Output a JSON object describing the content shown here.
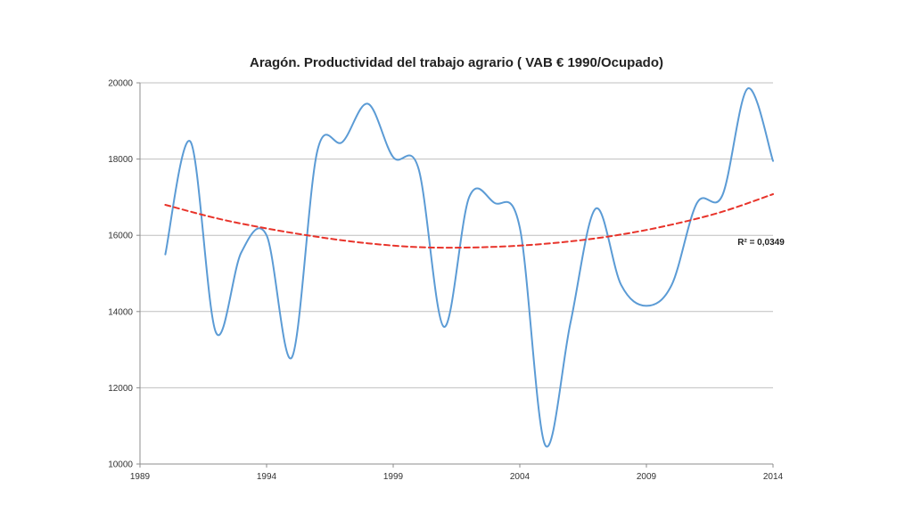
{
  "chart_data": {
    "type": "line",
    "title": "Aragón.  Productividad del trabajo agrario ( VAB € 1990/Ocupado)",
    "xlabel": "",
    "ylabel": "",
    "xlim": [
      1989,
      2014
    ],
    "ylim": [
      10000,
      20000
    ],
    "x_ticks": [
      "1989",
      "1994",
      "1999",
      "2004",
      "2009",
      "2014"
    ],
    "y_ticks": [
      "10000",
      "12000",
      "14000",
      "16000",
      "18000",
      "20000"
    ],
    "grid": "horizontal",
    "series": [
      {
        "name": "",
        "style": "smooth",
        "color": "#5b9bd5",
        "x": [
          1990,
          1991,
          1992,
          1993,
          1994,
          1995,
          1996,
          1997,
          1998,
          1999,
          2000,
          2001,
          2002,
          2003,
          2004,
          2005,
          2006,
          2007,
          2008,
          2009,
          2010,
          2011,
          2012,
          2013,
          2014
        ],
        "y": [
          15500,
          18450,
          13450,
          15550,
          16000,
          12800,
          18200,
          18450,
          19450,
          18050,
          17750,
          13600,
          17000,
          16850,
          16200,
          10500,
          13700,
          16700,
          14700,
          14150,
          14700,
          16850,
          17050,
          19850,
          17950
        ]
      },
      {
        "name": "",
        "style": "dashed",
        "color": "#e8332a",
        "x": [
          1990,
          1992,
          1994,
          1996,
          1998,
          2000,
          2002,
          2004,
          2006,
          2008,
          2010,
          2012,
          2014
        ],
        "y": [
          16800,
          16450,
          16180,
          15960,
          15790,
          15690,
          15680,
          15730,
          15840,
          16020,
          16280,
          16620,
          17080
        ]
      }
    ],
    "annotations": [
      {
        "text": "R² = 0,0349",
        "x": 2012.6,
        "y": 15750
      }
    ]
  }
}
